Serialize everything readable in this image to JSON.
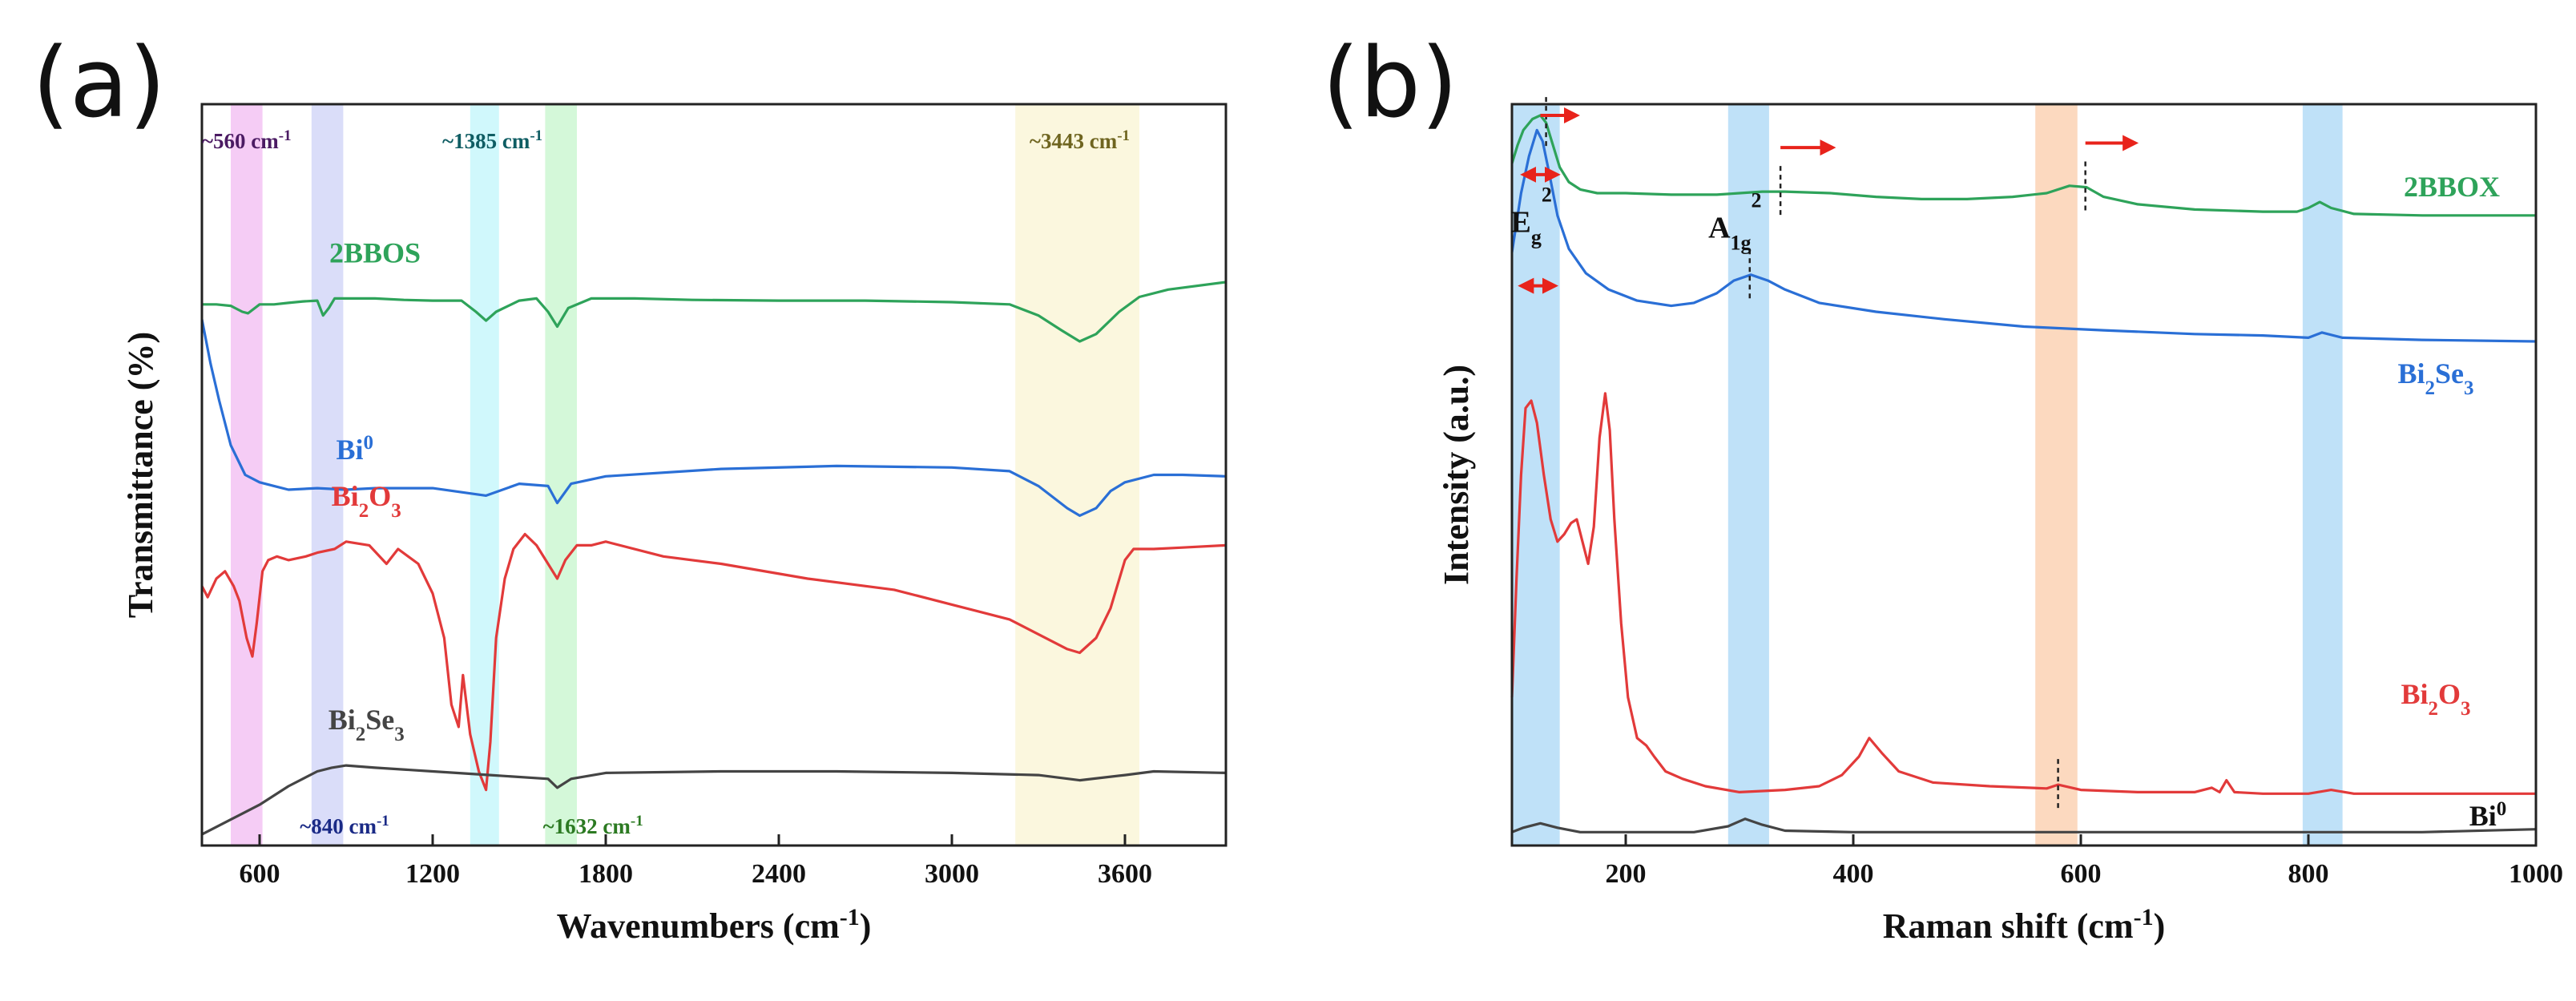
{
  "panel_a_label": "(a)",
  "panel_b_label": "(b)",
  "chart_data": [
    {
      "type": "line",
      "panel": "(a)",
      "xlabel": "Wavenumbers (cm-1)",
      "ylabel": "Transmittance (%)",
      "xlim": [
        400,
        3950
      ],
      "ylim": [
        0,
        10
      ],
      "xticks": [
        600,
        1200,
        1800,
        2400,
        3000,
        3600
      ],
      "yticks_shown": false,
      "bands": [
        {
          "name": "~560 cm-1",
          "from": 500,
          "to": 610,
          "color": "#f3c3f3",
          "label_position": "top"
        },
        {
          "name": "~840 cm-1",
          "from": 780,
          "to": 890,
          "color": "#d3d7f8",
          "label_position": "bottom"
        },
        {
          "name": "~1385 cm-1",
          "from": 1330,
          "to": 1430,
          "color": "#c8f7fb",
          "label_position": "top"
        },
        {
          "name": "~1632 cm-1",
          "from": 1590,
          "to": 1700,
          "color": "#cdf7d2",
          "label_position": "bottom"
        },
        {
          "name": "~3443 cm-1",
          "from": 3220,
          "to": 3650,
          "color": "#faf6d8",
          "label_position": "top"
        }
      ],
      "series": [
        {
          "name": "2BBOS",
          "color": "#2ea35a",
          "x": [
            400,
            450,
            500,
            540,
            560,
            600,
            650,
            700,
            750,
            800,
            820,
            840,
            860,
            900,
            1000,
            1100,
            1200,
            1300,
            1350,
            1385,
            1420,
            1500,
            1560,
            1600,
            1632,
            1670,
            1750,
            1900,
            2100,
            2400,
            2700,
            3000,
            3200,
            3300,
            3380,
            3443,
            3500,
            3580,
            3650,
            3750,
            3950
          ],
          "y": [
            7.3,
            7.3,
            7.28,
            7.2,
            7.18,
            7.3,
            7.3,
            7.32,
            7.34,
            7.35,
            7.15,
            7.25,
            7.38,
            7.38,
            7.38,
            7.36,
            7.35,
            7.35,
            7.2,
            7.08,
            7.2,
            7.35,
            7.38,
            7.2,
            7.0,
            7.25,
            7.38,
            7.38,
            7.36,
            7.35,
            7.35,
            7.33,
            7.3,
            7.15,
            6.95,
            6.8,
            6.9,
            7.2,
            7.4,
            7.5,
            7.6
          ]
        },
        {
          "name": "Bi0",
          "color": "#2a6fd6",
          "x": [
            400,
            430,
            460,
            500,
            550,
            600,
            650,
            700,
            800,
            900,
            1000,
            1200,
            1385,
            1500,
            1600,
            1632,
            1680,
            1800,
            2200,
            2600,
            3000,
            3200,
            3300,
            3400,
            3443,
            3500,
            3550,
            3600,
            3700,
            3800,
            3950
          ],
          "y": [
            7.1,
            6.5,
            6.0,
            5.4,
            5.0,
            4.9,
            4.85,
            4.8,
            4.82,
            4.8,
            4.82,
            4.82,
            4.72,
            4.88,
            4.85,
            4.62,
            4.88,
            4.98,
            5.08,
            5.12,
            5.1,
            5.05,
            4.85,
            4.55,
            4.45,
            4.55,
            4.78,
            4.9,
            5.0,
            5.0,
            4.98
          ]
        },
        {
          "name": "Bi2O3",
          "color": "#e23a3a",
          "x": [
            400,
            420,
            450,
            480,
            510,
            530,
            555,
            575,
            590,
            610,
            630,
            660,
            700,
            760,
            800,
            860,
            900,
            980,
            1040,
            1080,
            1150,
            1200,
            1240,
            1265,
            1290,
            1305,
            1330,
            1360,
            1385,
            1400,
            1420,
            1450,
            1480,
            1520,
            1560,
            1600,
            1632,
            1660,
            1700,
            1750,
            1800,
            2000,
            2200,
            2500,
            2800,
            3000,
            3200,
            3300,
            3400,
            3443,
            3500,
            3550,
            3600,
            3630,
            3700,
            3800,
            3950
          ],
          "y": [
            3.5,
            3.35,
            3.6,
            3.7,
            3.5,
            3.3,
            2.8,
            2.55,
            3.0,
            3.7,
            3.85,
            3.9,
            3.85,
            3.9,
            3.95,
            4.0,
            4.1,
            4.05,
            3.8,
            4.0,
            3.8,
            3.4,
            2.8,
            1.9,
            1.6,
            2.3,
            1.5,
            1.0,
            0.75,
            1.4,
            2.8,
            3.6,
            4.0,
            4.2,
            4.05,
            3.8,
            3.6,
            3.85,
            4.05,
            4.05,
            4.1,
            3.9,
            3.8,
            3.6,
            3.45,
            3.25,
            3.05,
            2.85,
            2.65,
            2.6,
            2.8,
            3.2,
            3.85,
            4.0,
            4.0,
            4.02,
            4.05
          ]
        },
        {
          "name": "Bi2Se3",
          "color": "#444444",
          "x": [
            400,
            500,
            600,
            700,
            800,
            850,
            900,
            1000,
            1200,
            1400,
            1600,
            1632,
            1680,
            1800,
            2200,
            2600,
            3000,
            3300,
            3443,
            3600,
            3700,
            3950
          ],
          "y": [
            0.15,
            0.35,
            0.55,
            0.8,
            1.0,
            1.05,
            1.08,
            1.05,
            1.0,
            0.95,
            0.9,
            0.78,
            0.9,
            0.98,
            1.0,
            1.0,
            0.98,
            0.95,
            0.88,
            0.95,
            1.0,
            0.98
          ]
        }
      ],
      "series_labels": [
        {
          "series": "2BBOS",
          "text": "2BBOS"
        },
        {
          "series": "Bi0",
          "base": "Bi",
          "sup": "0"
        },
        {
          "series": "Bi2O3",
          "parts": [
            "Bi",
            "2",
            "O",
            "3"
          ]
        },
        {
          "series": "Bi2Se3",
          "parts": [
            "Bi",
            "2",
            "Se",
            "3"
          ]
        }
      ]
    },
    {
      "type": "line",
      "panel": "(b)",
      "xlabel": "Raman shift (cm-1)",
      "ylabel": "Intensity (a.u.)",
      "xlim": [
        100,
        1000
      ],
      "ylim": [
        0,
        10
      ],
      "xticks": [
        200,
        400,
        600,
        800,
        1000
      ],
      "bands": [
        {
          "from": 100,
          "to": 142,
          "color": "#b4dcf7"
        },
        {
          "from": 290,
          "to": 326,
          "color": "#b4dcf7"
        },
        {
          "from": 560,
          "to": 597,
          "color": "#fbd2b4"
        },
        {
          "from": 795,
          "to": 830,
          "color": "#b4dcf7"
        }
      ],
      "series": [
        {
          "name": "2BBOX",
          "color": "#2ea35a",
          "x": [
            100,
            105,
            110,
            118,
            125,
            130,
            136,
            142,
            150,
            160,
            175,
            200,
            240,
            280,
            300,
            320,
            340,
            380,
            420,
            460,
            500,
            540,
            570,
            590,
            605,
            620,
            650,
            700,
            760,
            790,
            800,
            810,
            820,
            840,
            900,
            1000
          ],
          "y": [
            9.2,
            9.45,
            9.65,
            9.8,
            9.85,
            9.75,
            9.45,
            9.15,
            8.95,
            8.85,
            8.8,
            8.8,
            8.78,
            8.78,
            8.8,
            8.82,
            8.82,
            8.8,
            8.75,
            8.72,
            8.72,
            8.75,
            8.8,
            8.9,
            8.88,
            8.75,
            8.65,
            8.58,
            8.55,
            8.55,
            8.6,
            8.68,
            8.6,
            8.52,
            8.5,
            8.5
          ]
        },
        {
          "name": "Bi2Se3",
          "color": "#2a6fd6",
          "x": [
            100,
            103,
            108,
            115,
            122,
            127,
            133,
            140,
            150,
            165,
            185,
            210,
            240,
            260,
            280,
            295,
            310,
            325,
            340,
            370,
            420,
            480,
            550,
            620,
            700,
            760,
            800,
            812,
            830,
            900,
            1000
          ],
          "y": [
            8.0,
            8.3,
            8.8,
            9.3,
            9.65,
            9.5,
            9.05,
            8.5,
            8.05,
            7.72,
            7.5,
            7.35,
            7.28,
            7.32,
            7.45,
            7.62,
            7.7,
            7.62,
            7.5,
            7.32,
            7.2,
            7.1,
            7.0,
            6.95,
            6.9,
            6.88,
            6.85,
            6.92,
            6.85,
            6.82,
            6.8
          ]
        },
        {
          "name": "Bi2O3",
          "color": "#e23a3a",
          "x": [
            100,
            104,
            108,
            112,
            117,
            122,
            128,
            134,
            140,
            146,
            152,
            157,
            162,
            167,
            172,
            177,
            182,
            186,
            190,
            196,
            202,
            210,
            218,
            225,
            235,
            250,
            270,
            300,
            340,
            370,
            390,
            405,
            414,
            425,
            440,
            470,
            520,
            570,
            580,
            600,
            650,
            700,
            715,
            722,
            728,
            735,
            760,
            800,
            820,
            840,
            900,
            1000
          ],
          "y": [
            2.0,
            3.6,
            5.0,
            5.9,
            6.0,
            5.7,
            5.0,
            4.4,
            4.1,
            4.2,
            4.35,
            4.4,
            4.1,
            3.8,
            4.3,
            5.5,
            6.1,
            5.6,
            4.4,
            3.0,
            2.0,
            1.45,
            1.35,
            1.2,
            1.0,
            0.9,
            0.8,
            0.72,
            0.75,
            0.8,
            0.95,
            1.2,
            1.45,
            1.25,
            1.0,
            0.85,
            0.8,
            0.77,
            0.82,
            0.75,
            0.72,
            0.72,
            0.78,
            0.72,
            0.88,
            0.72,
            0.7,
            0.7,
            0.75,
            0.7,
            0.7,
            0.7
          ]
        },
        {
          "name": "Bi0",
          "color": "#444444",
          "x": [
            100,
            110,
            125,
            140,
            160,
            200,
            260,
            290,
            305,
            320,
            340,
            400,
            500,
            600,
            700,
            800,
            900,
            1000
          ],
          "y": [
            0.18,
            0.24,
            0.3,
            0.24,
            0.18,
            0.18,
            0.18,
            0.26,
            0.36,
            0.28,
            0.2,
            0.18,
            0.18,
            0.18,
            0.18,
            0.18,
            0.18,
            0.22
          ]
        }
      ],
      "series_labels": [
        {
          "series": "2BBOX",
          "text": "2BBOX"
        },
        {
          "series": "Bi2Se3",
          "parts": [
            "Bi",
            "2",
            "Se",
            "3"
          ]
        },
        {
          "series": "Bi2O3",
          "parts": [
            "Bi",
            "2",
            "O",
            "3"
          ]
        },
        {
          "series": "Bi0",
          "base": "Bi",
          "sup": "0"
        }
      ],
      "mode_labels": [
        {
          "name": "Eg2",
          "base": "E",
          "sub": "g",
          "sup": "2"
        },
        {
          "name": "A1g2",
          "base": "A",
          "sub": "1g",
          "sup": "2"
        }
      ],
      "shift_arrows": [
        {
          "x_from": 125,
          "x_to": 157,
          "series": "2BBOX",
          "color": "#e8231b"
        },
        {
          "x_from": 336,
          "x_to": 382,
          "series": "2BBOX",
          "color": "#e8231b"
        },
        {
          "x_from": 604,
          "x_to": 648,
          "series": "2BBOX",
          "color": "#e8231b"
        }
      ],
      "width_arrows": [
        {
          "x_from": 110,
          "x_to": 140,
          "series": "2BBOX",
          "color": "#e8231b"
        },
        {
          "x_from": 108,
          "x_to": 138,
          "series": "Bi2Se3",
          "color": "#e8231b"
        }
      ],
      "dashed_markers": [
        {
          "x": 130,
          "series": "2BBOX"
        },
        {
          "x": 336,
          "series": "2BBOX"
        },
        {
          "x": 604,
          "series": "2BBOX"
        },
        {
          "x": 309,
          "series": "Bi2Se3"
        },
        {
          "x": 580,
          "series": "Bi2O3"
        }
      ]
    }
  ]
}
